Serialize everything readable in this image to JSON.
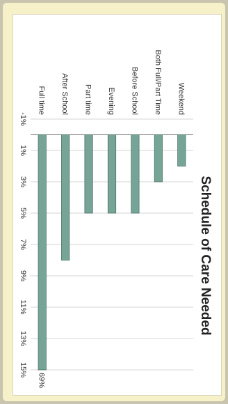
{
  "chart_data": {
    "type": "bar",
    "orientation": "horizontal",
    "title": "Schedule of Care Needed",
    "categories": [
      "Full time",
      "After School",
      "Part time",
      "Evening",
      "Before School",
      "Both Full/Part Time",
      "Weekend"
    ],
    "values": [
      69,
      8,
      5,
      5,
      5,
      3,
      2
    ],
    "axis_ticks": [
      "-1%",
      "1%",
      "3%",
      "5%",
      "7%",
      "9%",
      "11%",
      "13%",
      "15%"
    ],
    "xlim": [
      -1,
      15
    ],
    "axis_break": true,
    "data_labels": [
      {
        "category": "Full time",
        "text": "69%"
      }
    ],
    "grid": true,
    "legend": "none",
    "colors": {
      "bar": "#76a496",
      "bar_edge": "#4a7466",
      "background": "#f6f1c9"
    }
  }
}
